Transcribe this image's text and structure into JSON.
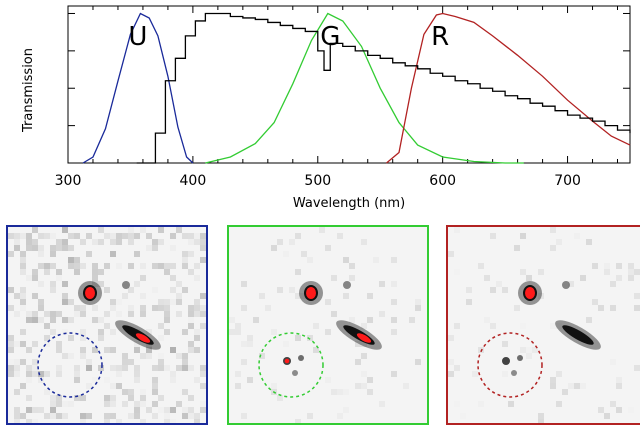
{
  "chart_data": {
    "type": "line",
    "xlabel": "Wavelength (nm)",
    "ylabel": "Transmission",
    "xlim": [
      300,
      750
    ],
    "ylim": [
      0,
      1.05
    ],
    "x_ticks": [
      300,
      400,
      500,
      600,
      700
    ],
    "grid": false,
    "band_labels": [
      {
        "text": "U",
        "x": 356
      },
      {
        "text": "G",
        "x": 510
      },
      {
        "text": "R",
        "x": 598
      }
    ],
    "series": [
      {
        "color": "#1a2a9a",
        "x": [
          312,
          320,
          330,
          340,
          350,
          358,
          365,
          372,
          380,
          388,
          395,
          400
        ],
        "y": [
          0.0,
          0.04,
          0.23,
          0.55,
          0.86,
          1.0,
          0.97,
          0.85,
          0.58,
          0.24,
          0.04,
          0.0
        ]
      },
      {
        "color": "#33cc33",
        "x": [
          410,
          430,
          450,
          465,
          480,
          495,
          508,
          520,
          535,
          550,
          565,
          580,
          600,
          625,
          650,
          665
        ],
        "y": [
          0.0,
          0.04,
          0.13,
          0.27,
          0.53,
          0.82,
          1.0,
          0.95,
          0.78,
          0.5,
          0.27,
          0.12,
          0.04,
          0.01,
          0.0,
          0.0
        ]
      },
      {
        "color": "#b22222",
        "x": [
          555,
          565,
          575,
          585,
          595,
          600,
          610,
          625,
          640,
          660,
          680,
          700,
          720,
          735,
          750
        ],
        "y": [
          0.0,
          0.07,
          0.5,
          0.86,
          0.99,
          1.0,
          0.98,
          0.94,
          0.85,
          0.72,
          0.58,
          0.42,
          0.28,
          0.18,
          0.12
        ]
      },
      {
        "color": "#000000",
        "step": true,
        "x": [
          355,
          370,
          378,
          386,
          394,
          402,
          410,
          420,
          430,
          440,
          450,
          460,
          470,
          480,
          490,
          500,
          505,
          510,
          520,
          530,
          540,
          550,
          560,
          570,
          580,
          590,
          600,
          610,
          620,
          630,
          640,
          650,
          660,
          670,
          680,
          690,
          700,
          710,
          720,
          730,
          740,
          750
        ],
        "y": [
          0.0,
          0.2,
          0.55,
          0.7,
          0.85,
          0.95,
          1.0,
          1.0,
          0.98,
          0.97,
          0.96,
          0.94,
          0.92,
          0.9,
          0.88,
          0.75,
          0.62,
          0.8,
          0.78,
          0.75,
          0.72,
          0.7,
          0.67,
          0.65,
          0.63,
          0.6,
          0.58,
          0.55,
          0.53,
          0.5,
          0.48,
          0.45,
          0.43,
          0.4,
          0.38,
          0.35,
          0.32,
          0.3,
          0.28,
          0.25,
          0.22,
          0.2
        ]
      }
    ]
  },
  "panels": [
    {
      "band": "U",
      "border": "#1a2a9a",
      "circle": "#1a2a9a",
      "noisy": true
    },
    {
      "band": "G",
      "border": "#33cc33",
      "circle": "#33cc33",
      "noisy": false
    },
    {
      "band": "R",
      "border": "#b22222",
      "circle": "#b22222",
      "noisy": false
    }
  ]
}
